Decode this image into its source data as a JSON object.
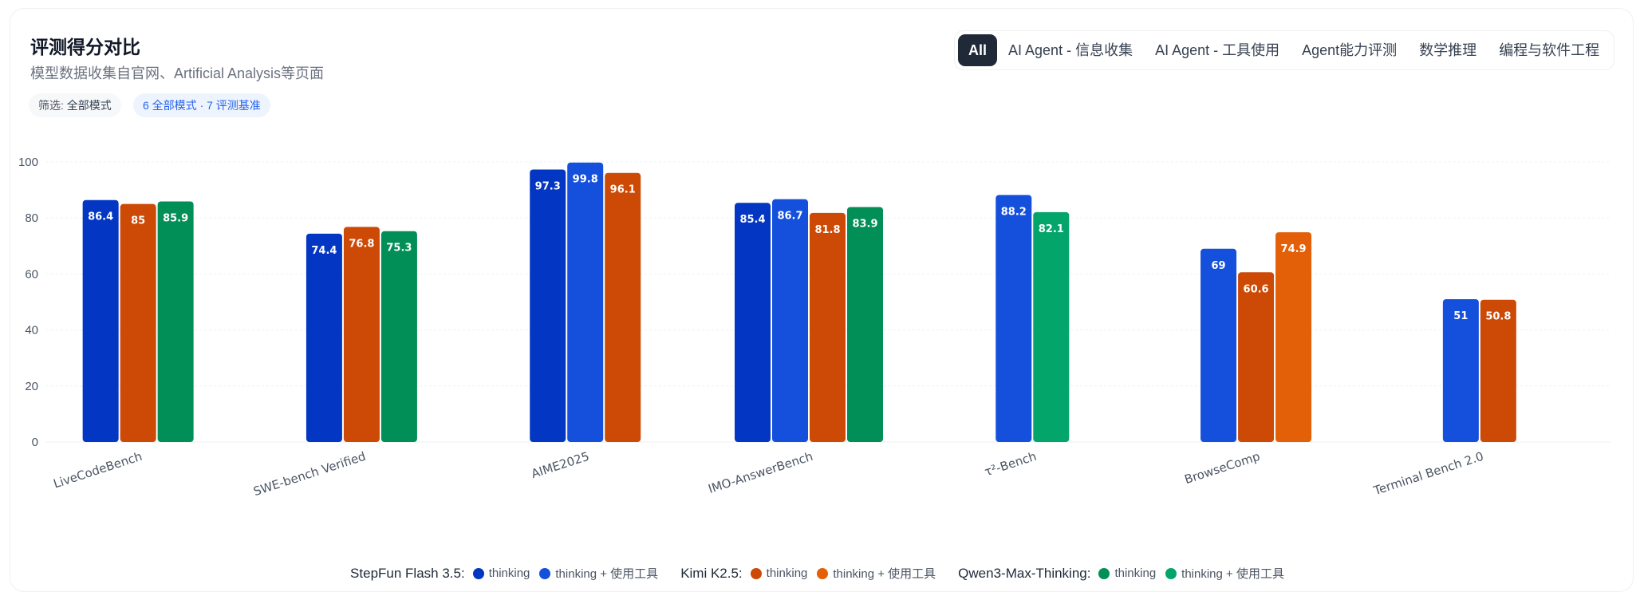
{
  "header": {
    "title": "评测得分对比",
    "subtitle": "模型数据收集自官网、Artificial Analysis等页面"
  },
  "filters": {
    "prefix": "筛选:",
    "value": "全部模式",
    "count_label": "6 全部模式 · 7 评测基准"
  },
  "tabs": [
    {
      "label": "All",
      "active": true
    },
    {
      "label": "AI Agent - 信息收集",
      "active": false
    },
    {
      "label": "AI Agent - 工具使用",
      "active": false
    },
    {
      "label": "Agent能力评测",
      "active": false
    },
    {
      "label": "数学推理",
      "active": false
    },
    {
      "label": "编程与软件工程",
      "active": false
    }
  ],
  "legend": {
    "models": [
      {
        "name": "StepFun Flash 3.5:",
        "items": [
          {
            "label": "thinking",
            "color": "#0336c3"
          },
          {
            "label": "thinking + 使用工具",
            "color": "#1550dc"
          }
        ]
      },
      {
        "name": "Kimi K2.5:",
        "items": [
          {
            "label": "thinking",
            "color": "#cc4a06"
          },
          {
            "label": "thinking + 使用工具",
            "color": "#e35f08"
          }
        ]
      },
      {
        "name": "Qwen3-Max-Thinking:",
        "items": [
          {
            "label": "thinking",
            "color": "#028e57"
          },
          {
            "label": "thinking + 使用工具",
            "color": "#04a56b"
          }
        ]
      }
    ]
  },
  "chart_data": {
    "type": "bar",
    "title": "评测得分对比",
    "ylim": [
      0,
      100
    ],
    "yticks": [
      0,
      20,
      40,
      60,
      80,
      100
    ],
    "categories": [
      "LiveCodeBench",
      "SWE-bench Verified",
      "AIME2025",
      "IMO-AnswerBench",
      "τ²-Bench",
      "BrowseComp",
      "Terminal Bench 2.0"
    ],
    "series": [
      {
        "name": "StepFun Flash 3.5 thinking",
        "color": "#0336c3",
        "values": [
          86.4,
          74.4,
          97.3,
          85.4,
          null,
          null,
          null
        ]
      },
      {
        "name": "StepFun Flash 3.5 thinking + 使用工具",
        "color": "#1550dc",
        "values": [
          null,
          null,
          99.8,
          86.7,
          88.2,
          69,
          51
        ]
      },
      {
        "name": "Kimi K2.5 thinking",
        "color": "#cc4a06",
        "values": [
          85,
          76.8,
          96.1,
          81.8,
          null,
          60.6,
          50.8
        ]
      },
      {
        "name": "Kimi K2.5 thinking + 使用工具",
        "color": "#e35f08",
        "values": [
          null,
          null,
          null,
          null,
          null,
          74.9,
          null
        ]
      },
      {
        "name": "Qwen3-Max-Thinking thinking",
        "color": "#028e57",
        "values": [
          85.9,
          75.3,
          null,
          83.9,
          null,
          null,
          null
        ]
      },
      {
        "name": "Qwen3-Max-Thinking thinking + 使用工具",
        "color": "#04a56b",
        "values": [
          null,
          null,
          null,
          null,
          82.1,
          null,
          null
        ]
      }
    ],
    "legend_position": "bottom"
  }
}
